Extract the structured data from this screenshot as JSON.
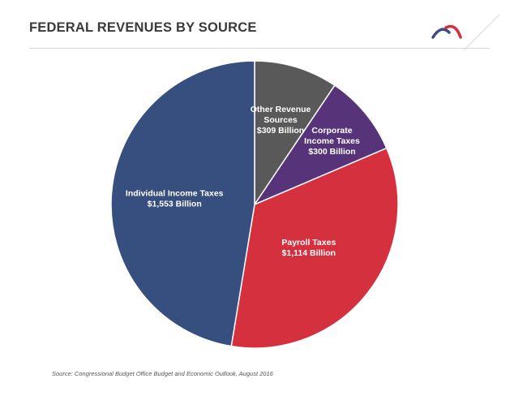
{
  "header": {
    "title": "FEDERAL REVENUES BY SOURCE"
  },
  "chart_data": {
    "type": "pie",
    "title": "FEDERAL REVENUES BY SOURCE",
    "unit": "Billion",
    "slices": [
      {
        "name": "Other Revenue Sources",
        "label_lines": [
          "Other Revenue",
          "Sources",
          "$309 Billion"
        ],
        "value": 309,
        "color": "#595959"
      },
      {
        "name": "Corporate Income Taxes",
        "label_lines": [
          "Corporate",
          "Income Taxes",
          "$300 Billion"
        ],
        "value": 300,
        "color": "#57347a"
      },
      {
        "name": "Payroll Taxes",
        "label_lines": [
          "Payroll Taxes",
          "$1,114 Billion"
        ],
        "value": 1114,
        "color": "#d5303e"
      },
      {
        "name": "Individual Income Taxes",
        "label_lines": [
          "Individual Income Taxes",
          "$1,553 Billion"
        ],
        "value": 1553,
        "color": "#364f7e"
      }
    ],
    "start_angle_deg": 0,
    "direction": "clockwise",
    "legend": "none"
  },
  "footer": {
    "source": "Source: Congressional Budget Office Budget and Economic Outlook, August 2016"
  },
  "logo": {
    "icon": "arc-logo-icon",
    "colors": [
      "#364f7e",
      "#d5303e"
    ]
  }
}
